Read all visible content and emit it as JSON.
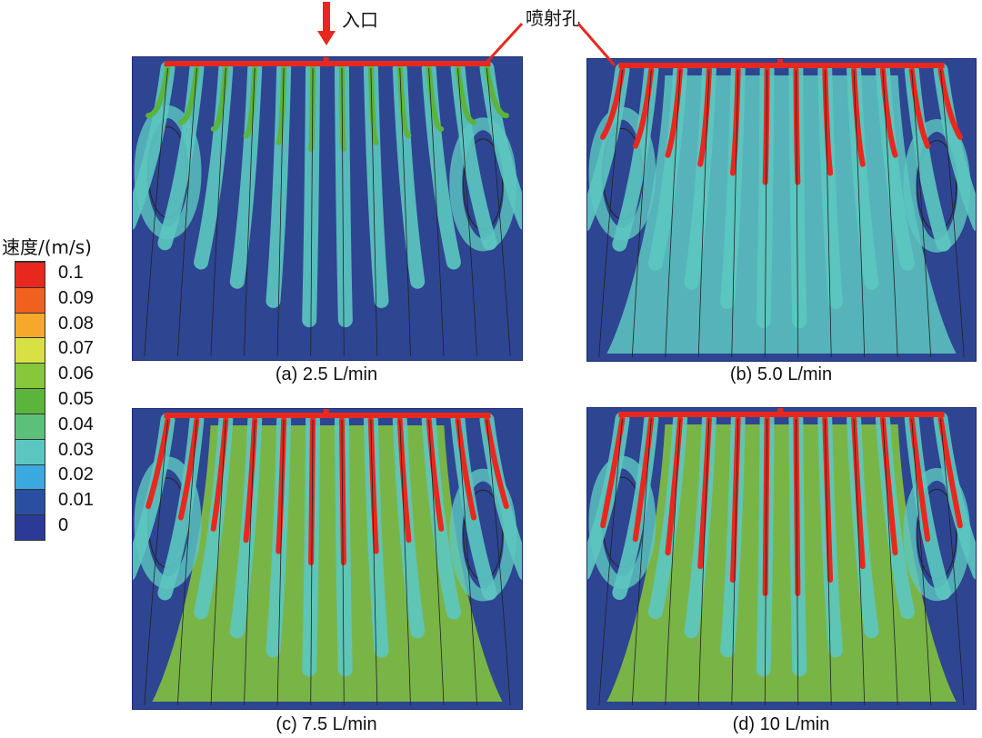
{
  "figure": {
    "legend": {
      "title": "速度/(m/s)",
      "ticks": [
        "0.1",
        "0.09",
        "0.08",
        "0.07",
        "0.06",
        "0.05",
        "0.04",
        "0.03",
        "0.02",
        "0.01",
        "0"
      ],
      "colors": [
        "#e8281e",
        "#f0601e",
        "#f5a82a",
        "#d8e044",
        "#86c83a",
        "#5bb43c",
        "#5cc07a",
        "#5cc7c0",
        "#3aa9e0",
        "#2b4fa0",
        "#2a3a96"
      ]
    },
    "annotations": {
      "inlet": "入口",
      "nozzle": "喷射孔"
    },
    "panels": [
      {
        "caption": "(a) 2.5 L/min",
        "flow_rate": 2.5
      },
      {
        "caption": "(b) 5.0 L/min",
        "flow_rate": 5.0
      },
      {
        "caption": "(c) 7.5 L/min",
        "flow_rate": 7.5
      },
      {
        "caption": "(d) 10 L/min",
        "flow_rate": 10
      }
    ],
    "colors": {
      "background": "#2e4592",
      "pipe": "#e8281e",
      "streamline": "#222222"
    }
  }
}
